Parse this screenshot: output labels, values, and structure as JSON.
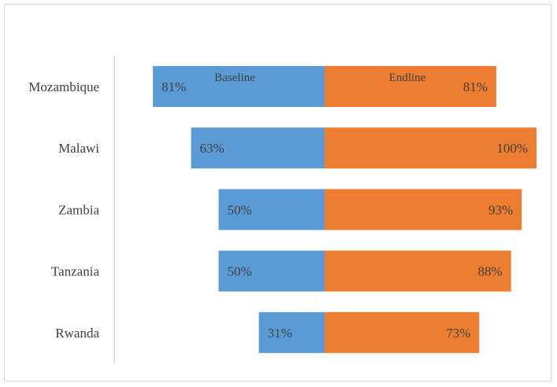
{
  "chart_data": {
    "type": "bar",
    "orientation": "horizontal-diverging",
    "categories": [
      "Mozambique",
      "Malawi",
      "Zambia",
      "Tanzania",
      "Rwanda"
    ],
    "series": [
      {
        "name": "Baseline",
        "values": [
          81,
          63,
          50,
          50,
          31
        ],
        "color": "#5B9BD5",
        "direction": "left"
      },
      {
        "name": "Endline",
        "values": [
          81,
          100,
          93,
          88,
          73
        ],
        "color": "#ED7D31",
        "direction": "right"
      }
    ],
    "value_format": "percent",
    "xlim": [
      -100,
      100
    ],
    "grid": false,
    "legend": "series names printed inside top bar"
  }
}
